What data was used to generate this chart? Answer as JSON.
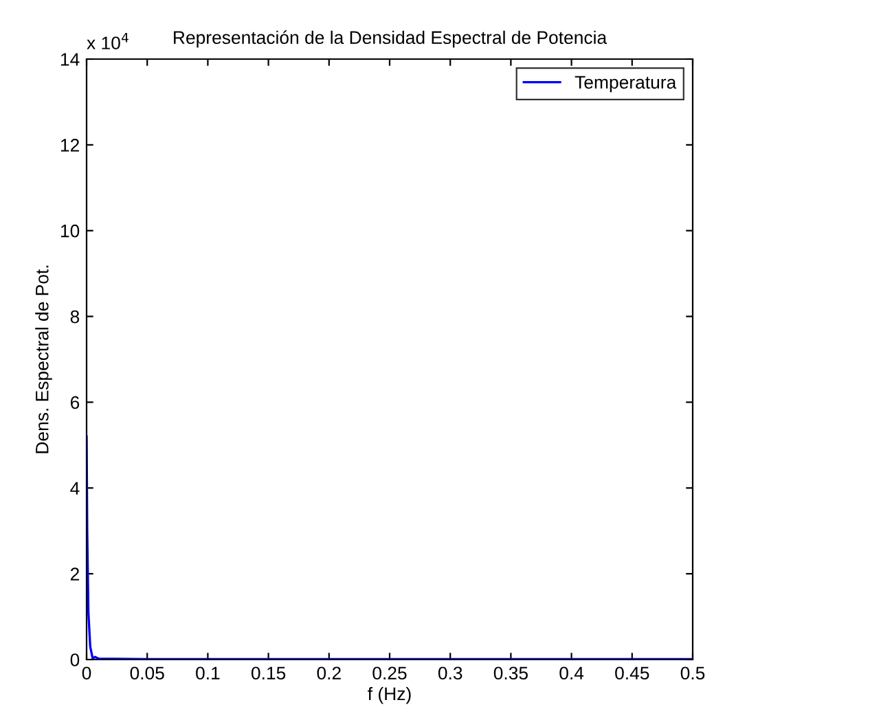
{
  "chart_data": {
    "type": "line",
    "title": "Representación de la Densidad Espectral de Potencia",
    "xlabel": "f (Hz)",
    "ylabel": "Dens. Espectral de Pot.",
    "annotations": [
      "x 10$^{4}$"
    ],
    "x": [
      0,
      0.0005,
      0.0015,
      0.003,
      0.005,
      0.007,
      0.01,
      0.05,
      0.1,
      0.2,
      0.3,
      0.4,
      0.5
    ],
    "series": [
      {
        "name": "Temperatura",
        "color": "#0000ff",
        "values": [
          5.2,
          3.0,
          1.1,
          0.3,
          0.03,
          0.06,
          0.02,
          0.01,
          0.01,
          0.01,
          0.01,
          0.01,
          0.01
        ]
      }
    ],
    "xlim": [
      0,
      0.5
    ],
    "xticks": [
      0,
      0.05,
      0.1,
      0.15,
      0.2,
      0.25,
      0.3,
      0.35,
      0.4,
      0.45,
      0.5
    ],
    "ylim": [
      0,
      14
    ],
    "yticks": [
      0,
      2,
      4,
      6,
      8,
      10,
      12,
      14
    ],
    "legend": "top right",
    "grid": false
  }
}
